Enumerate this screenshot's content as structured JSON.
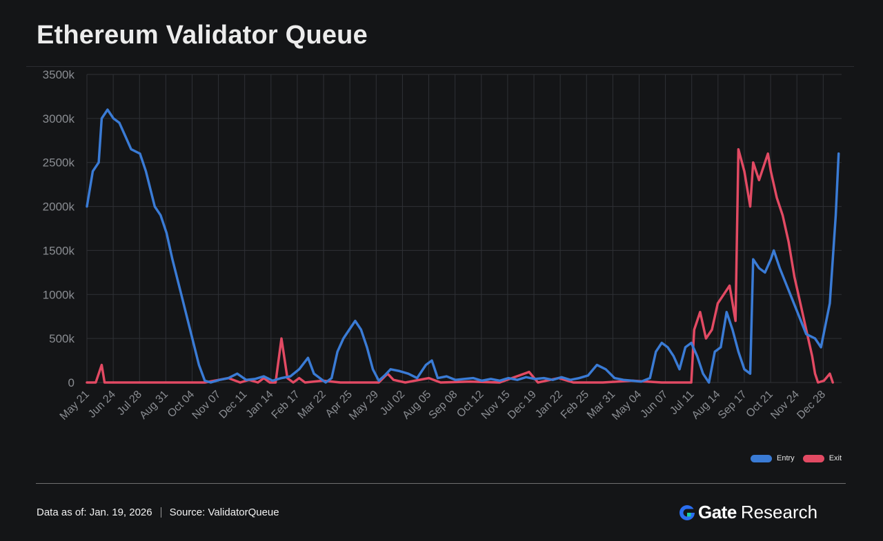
{
  "page": {
    "title": "Ethereum Validator Queue"
  },
  "footer": {
    "data_as_of": "Data as of: Jan. 19, 2026",
    "source": "Source:  ValidatorQueue"
  },
  "brand": {
    "name": "Gate",
    "suffix": "Research"
  },
  "colors": {
    "entry": "#3a7bd5",
    "exit": "#e24a63",
    "grid": "#2f3136",
    "tick": "#8a8d92"
  },
  "chart_data": {
    "type": "line",
    "title": "Ethereum Validator Queue",
    "xlabel": "",
    "ylabel": "",
    "ylim": [
      0,
      3500
    ],
    "y_unit": "k",
    "y_ticks": [
      0,
      500,
      1000,
      1500,
      2000,
      2500,
      3000,
      3500
    ],
    "y_tick_labels": [
      "0",
      "500k",
      "1000k",
      "1500k",
      "2000k",
      "2500k",
      "3000k",
      "3500k"
    ],
    "x_ticks": [
      "May 21",
      "Jun 24",
      "Jul 28",
      "Aug 31",
      "Oct 04",
      "Nov 07",
      "Dec 11",
      "Jan 14",
      "Feb 17",
      "Mar 22",
      "Apr 25",
      "May 29",
      "Jul 02",
      "Aug 05",
      "Sep 08",
      "Oct 12",
      "Nov 15",
      "Dec 19",
      "Jan 22",
      "Feb 25",
      "Mar 31",
      "May 04",
      "Jun 07",
      "Jul 11",
      "Aug 14",
      "Sep 17",
      "Oct 21",
      "Nov 24",
      "Dec 28"
    ],
    "legend": {
      "position": "bottom-right"
    },
    "series": [
      {
        "name": "Entry",
        "color": "#3a7bd5",
        "points": [
          [
            0,
            2000
          ],
          [
            2,
            2400
          ],
          [
            4,
            2500
          ],
          [
            5,
            3000
          ],
          [
            7,
            3100
          ],
          [
            9,
            3000
          ],
          [
            11,
            2950
          ],
          [
            13,
            2800
          ],
          [
            15,
            2650
          ],
          [
            18,
            2600
          ],
          [
            20,
            2400
          ],
          [
            23,
            2000
          ],
          [
            25,
            1900
          ],
          [
            27,
            1700
          ],
          [
            29,
            1400
          ],
          [
            32,
            1000
          ],
          [
            35,
            600
          ],
          [
            38,
            200
          ],
          [
            40,
            20
          ],
          [
            42,
            0
          ],
          [
            45,
            30
          ],
          [
            48,
            50
          ],
          [
            51,
            100
          ],
          [
            54,
            30
          ],
          [
            57,
            40
          ],
          [
            60,
            70
          ],
          [
            63,
            20
          ],
          [
            66,
            50
          ],
          [
            69,
            70
          ],
          [
            72,
            150
          ],
          [
            75,
            280
          ],
          [
            77,
            100
          ],
          [
            79,
            50
          ],
          [
            81,
            0
          ],
          [
            83,
            50
          ],
          [
            85,
            350
          ],
          [
            87,
            500
          ],
          [
            89,
            600
          ],
          [
            91,
            700
          ],
          [
            93,
            600
          ],
          [
            95,
            400
          ],
          [
            97,
            150
          ],
          [
            99,
            20
          ],
          [
            101,
            80
          ],
          [
            103,
            150
          ],
          [
            106,
            130
          ],
          [
            109,
            100
          ],
          [
            112,
            50
          ],
          [
            115,
            200
          ],
          [
            117,
            250
          ],
          [
            119,
            50
          ],
          [
            122,
            70
          ],
          [
            125,
            30
          ],
          [
            128,
            40
          ],
          [
            131,
            50
          ],
          [
            134,
            20
          ],
          [
            137,
            40
          ],
          [
            140,
            20
          ],
          [
            143,
            50
          ],
          [
            146,
            30
          ],
          [
            149,
            60
          ],
          [
            152,
            40
          ],
          [
            155,
            50
          ],
          [
            158,
            30
          ],
          [
            161,
            60
          ],
          [
            164,
            30
          ],
          [
            167,
            50
          ],
          [
            170,
            80
          ],
          [
            173,
            200
          ],
          [
            176,
            150
          ],
          [
            179,
            50
          ],
          [
            182,
            30
          ],
          [
            185,
            20
          ],
          [
            188,
            10
          ],
          [
            191,
            50
          ],
          [
            193,
            350
          ],
          [
            195,
            450
          ],
          [
            197,
            400
          ],
          [
            199,
            300
          ],
          [
            201,
            150
          ],
          [
            203,
            400
          ],
          [
            205,
            450
          ],
          [
            207,
            300
          ],
          [
            209,
            100
          ],
          [
            211,
            0
          ],
          [
            213,
            350
          ],
          [
            215,
            400
          ],
          [
            217,
            800
          ],
          [
            219,
            600
          ],
          [
            221,
            350
          ],
          [
            223,
            150
          ],
          [
            225,
            100
          ],
          [
            226,
            1400
          ],
          [
            228,
            1300
          ],
          [
            230,
            1250
          ],
          [
            232,
            1400
          ],
          [
            233,
            1500
          ],
          [
            235,
            1300
          ],
          [
            238,
            1050
          ],
          [
            241,
            800
          ],
          [
            244,
            550
          ],
          [
            247,
            500
          ],
          [
            249,
            400
          ],
          [
            252,
            900
          ],
          [
            253,
            1400
          ],
          [
            254,
            1900
          ],
          [
            255,
            2600
          ]
        ]
      },
      {
        "name": "Exit",
        "color": "#e24a63",
        "points": [
          [
            0,
            0
          ],
          [
            3,
            0
          ],
          [
            5,
            200
          ],
          [
            6,
            0
          ],
          [
            10,
            0
          ],
          [
            20,
            0
          ],
          [
            30,
            0
          ],
          [
            40,
            0
          ],
          [
            48,
            50
          ],
          [
            52,
            0
          ],
          [
            55,
            30
          ],
          [
            58,
            0
          ],
          [
            60,
            50
          ],
          [
            62,
            0
          ],
          [
            64,
            0
          ],
          [
            66,
            500
          ],
          [
            68,
            50
          ],
          [
            70,
            0
          ],
          [
            72,
            50
          ],
          [
            74,
            0
          ],
          [
            80,
            20
          ],
          [
            86,
            0
          ],
          [
            95,
            0
          ],
          [
            99,
            0
          ],
          [
            102,
            100
          ],
          [
            104,
            30
          ],
          [
            108,
            0
          ],
          [
            116,
            50
          ],
          [
            120,
            0
          ],
          [
            130,
            10
          ],
          [
            140,
            0
          ],
          [
            150,
            120
          ],
          [
            153,
            0
          ],
          [
            160,
            50
          ],
          [
            165,
            0
          ],
          [
            175,
            0
          ],
          [
            185,
            20
          ],
          [
            195,
            0
          ],
          [
            205,
            0
          ],
          [
            206,
            600
          ],
          [
            208,
            800
          ],
          [
            210,
            500
          ],
          [
            212,
            600
          ],
          [
            214,
            900
          ],
          [
            216,
            1000
          ],
          [
            218,
            1100
          ],
          [
            220,
            700
          ],
          [
            221,
            2650
          ],
          [
            223,
            2400
          ],
          [
            225,
            2000
          ],
          [
            226,
            2500
          ],
          [
            228,
            2300
          ],
          [
            229,
            2400
          ],
          [
            230,
            2500
          ],
          [
            231,
            2600
          ],
          [
            232,
            2400
          ],
          [
            234,
            2100
          ],
          [
            236,
            1900
          ],
          [
            238,
            1600
          ],
          [
            240,
            1200
          ],
          [
            242,
            900
          ],
          [
            244,
            600
          ],
          [
            246,
            300
          ],
          [
            247,
            100
          ],
          [
            248,
            0
          ],
          [
            250,
            20
          ],
          [
            252,
            100
          ],
          [
            253,
            0
          ]
        ]
      }
    ]
  }
}
